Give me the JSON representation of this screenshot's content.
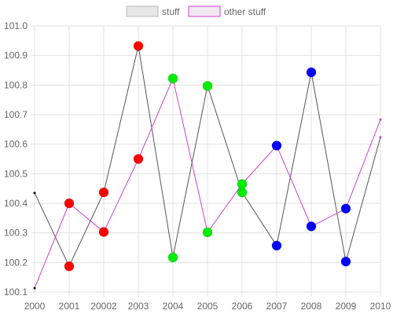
{
  "chart_data": {
    "type": "line",
    "categories": [
      "2000",
      "2001",
      "20002",
      "2003",
      "2004",
      "2005",
      "2006",
      "2007",
      "2008",
      "2009",
      "2010"
    ],
    "ylim": [
      100.1,
      101.0
    ],
    "yticks": [
      "100.1",
      "100.2",
      "100.3",
      "100.4",
      "100.5",
      "100.6",
      "100.7",
      "100.8",
      "100.9",
      "101.0"
    ],
    "grid": true,
    "legend_position": "top-center",
    "series": [
      {
        "name": "stuff",
        "line_color": "#555555",
        "legend_fill": "#e6e6e6",
        "values": [
          100.435,
          100.187,
          100.437,
          100.932,
          100.217,
          100.797,
          100.437,
          100.257,
          100.843,
          100.203,
          100.623
        ]
      },
      {
        "name": "other stuff",
        "line_color": "#cc44cc",
        "legend_fill": "#f3e6f3",
        "values": [
          100.113,
          100.4,
          100.303,
          100.55,
          100.822,
          100.302,
          100.465,
          100.595,
          100.322,
          100.382,
          100.683
        ]
      }
    ],
    "point_colors": [
      "#000000",
      "#ff0000",
      "#ff0000",
      "#ff0000",
      "#00ee00",
      "#00ee00",
      "#00ee00",
      "#0000ff",
      "#0000ff",
      "#0000ff",
      "#cc44cc"
    ],
    "big_point_indices": [
      1,
      2,
      3,
      4,
      5,
      6,
      7,
      8,
      9
    ]
  },
  "colors": {
    "grid": "#e0e0e0",
    "axis": "#cccccc",
    "text": "#666666"
  }
}
